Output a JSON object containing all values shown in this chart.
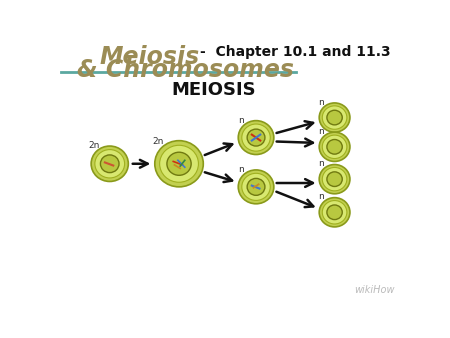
{
  "title_left1": "Meiosis",
  "title_left2": "& Chromosomes",
  "title_right": "-  Chapter 10.1 and 11.3",
  "title_color": "#9B8C55",
  "title_right_color": "#111111",
  "subtitle": "MEIOSIS",
  "watermark": "wikiHow",
  "bg_color": "#ffffff",
  "line_color": "#5BA8A0",
  "cell_outer_fc": "#c8d45a",
  "cell_outer_ec": "#8a9a20",
  "cell_mid_fc": "#d8e870",
  "cell_nuc_fc": "#b0be48",
  "cell_nuc_ec": "#707a10"
}
